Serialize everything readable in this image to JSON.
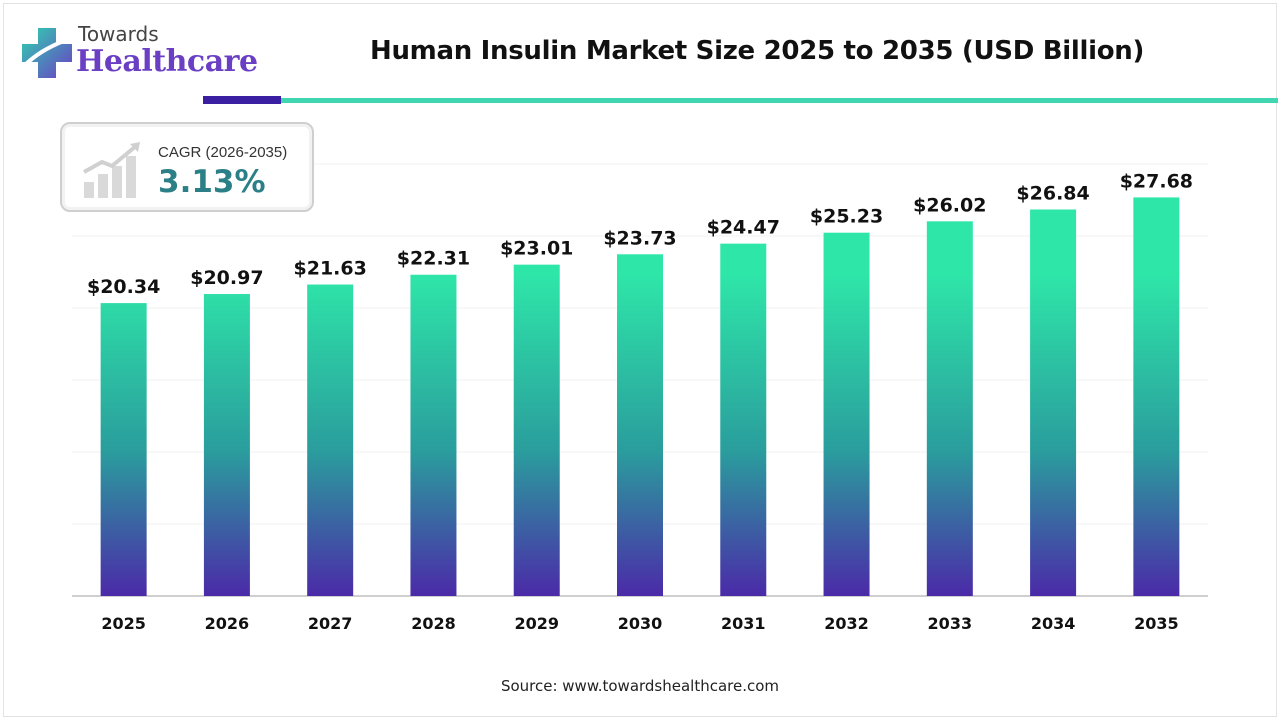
{
  "logo": {
    "top": "Towards",
    "bottom": "Healthcare"
  },
  "header": {
    "title": "Human Insulin Market Size 2025 to 2035 (USD Billion)"
  },
  "cagr": {
    "label": "CAGR (2026-2035)",
    "value": "3.13%"
  },
  "colors": {
    "bar_top": "#2ee6a8",
    "bar_mid": "#2a9d9d",
    "bar_bottom": "#4b2aa8",
    "accent_dark": "#3b1fa3",
    "accent_teal": "#3fd6b1",
    "cagr_value": "#2b7f86"
  },
  "chart_data": {
    "type": "bar",
    "title": "Human Insulin Market Size 2025 to 2035 (USD Billion)",
    "categories": [
      "2025",
      "2026",
      "2027",
      "2028",
      "2029",
      "2030",
      "2031",
      "2032",
      "2033",
      "2034",
      "2035"
    ],
    "values": [
      20.34,
      20.97,
      21.63,
      22.31,
      23.01,
      23.73,
      24.47,
      25.23,
      26.02,
      26.84,
      27.68
    ],
    "value_labels": [
      "$20.34",
      "$20.97",
      "$21.63",
      "$22.31",
      "$23.01",
      "$23.73",
      "$24.47",
      "$25.23",
      "$26.02",
      "$26.84",
      "$27.68"
    ],
    "xlabel": "",
    "ylabel": "",
    "ylim": [
      0,
      30
    ],
    "grid": true,
    "legend": "none"
  },
  "source": "Source: www.towardshealthcare.com"
}
